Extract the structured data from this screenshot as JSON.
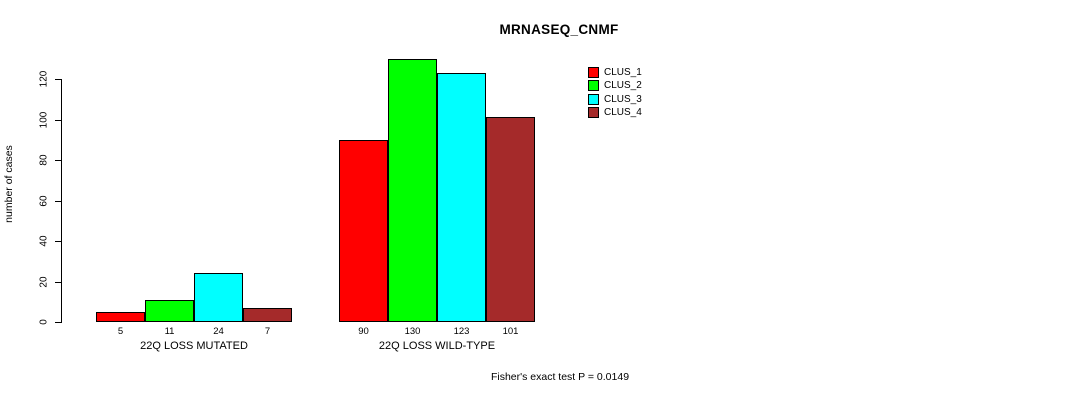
{
  "chart_data": {
    "type": "bar",
    "title": "MRNASEQ_CNMF",
    "ylabel": "number of cases",
    "xlabel": "",
    "categories": [
      "22Q LOSS MUTATED",
      "22Q LOSS WILD-TYPE"
    ],
    "series": [
      {
        "name": "CLUS_1",
        "color": "#ff0000",
        "values": [
          5,
          90
        ]
      },
      {
        "name": "CLUS_2",
        "color": "#00ff00",
        "values": [
          11,
          130
        ]
      },
      {
        "name": "CLUS_3",
        "color": "#00ffff",
        "values": [
          24,
          123
        ]
      },
      {
        "name": "CLUS_4",
        "color": "#a52a2a",
        "values": [
          7,
          101
        ]
      }
    ],
    "bar_value_labels": [
      [
        5,
        11,
        24,
        7
      ],
      [
        90,
        130,
        123,
        101
      ]
    ],
    "yticks": [
      0,
      20,
      40,
      60,
      80,
      100,
      120
    ],
    "ylim": [
      0,
      130
    ],
    "grid": false,
    "legend_position": "right",
    "legend_entries": [
      "CLUS_1",
      "CLUS_2",
      "CLUS_3",
      "CLUS_4"
    ],
    "annotation": "Fisher's exact test P = 0.0149",
    "colors": {
      "CLUS_1": "#ff0000",
      "CLUS_2": "#00ff00",
      "CLUS_3": "#00ffff",
      "CLUS_4": "#a52a2a",
      "bar_border": "#000000",
      "background": "#ffffff",
      "text": "#000000"
    }
  }
}
